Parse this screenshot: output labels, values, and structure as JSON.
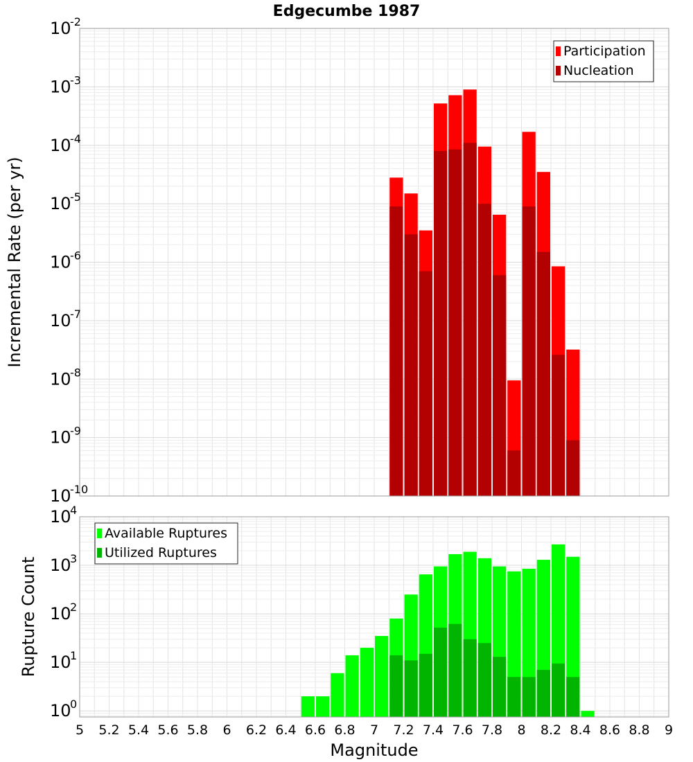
{
  "title": "Edgecumbe 1987",
  "chart_data": [
    {
      "type": "bar",
      "ylabel": "Incremental Rate (per yr)",
      "y_scale": "log",
      "ylim": [
        1e-10,
        0.01
      ],
      "y_ticks": [
        {
          "base": "10",
          "exp": "-10"
        },
        {
          "base": "10",
          "exp": "-9"
        },
        {
          "base": "10",
          "exp": "-8"
        },
        {
          "base": "10",
          "exp": "-7"
        },
        {
          "base": "10",
          "exp": "-6"
        },
        {
          "base": "10",
          "exp": "-5"
        },
        {
          "base": "10",
          "exp": "-4"
        },
        {
          "base": "10",
          "exp": "-3"
        },
        {
          "base": "10",
          "exp": "-2"
        }
      ],
      "xlim": [
        5,
        9
      ],
      "grid": true,
      "legend_position": "top-right",
      "x": [
        7.15,
        7.25,
        7.35,
        7.45,
        7.55,
        7.65,
        7.75,
        7.85,
        7.95,
        8.05,
        8.15,
        8.25,
        8.35
      ],
      "series": [
        {
          "name": "Participation",
          "color": "#ff0000",
          "values": [
            2.8e-05,
            1.5e-05,
            3.5e-06,
            0.00052,
            0.00072,
            0.0009,
            9.5e-05,
            6.5e-06,
            9.5e-09,
            0.00017,
            3.5e-05,
            8.5e-07,
            3.2e-08
          ]
        },
        {
          "name": "Nucleation",
          "color": "#b30000",
          "values": [
            9e-06,
            3e-06,
            7e-07,
            8e-05,
            8.5e-05,
            0.00011,
            1e-05,
            6e-07,
            6e-10,
            9e-06,
            1.5e-06,
            2.6e-08,
            9e-10
          ]
        }
      ]
    },
    {
      "type": "bar",
      "ylabel": "Rupture Count",
      "xlabel": "Magnitude",
      "y_scale": "log",
      "ylim": [
        0.75,
        10000
      ],
      "y_ticks": [
        {
          "base": "10",
          "exp": "0"
        },
        {
          "base": "10",
          "exp": "1"
        },
        {
          "base": "10",
          "exp": "2"
        },
        {
          "base": "10",
          "exp": "3"
        },
        {
          "base": "10",
          "exp": "4"
        }
      ],
      "xlim": [
        5,
        9
      ],
      "x_tick_labels": [
        "5",
        "5.2",
        "5.4",
        "5.6",
        "5.8",
        "6",
        "6.2",
        "6.4",
        "6.6",
        "6.8",
        "7",
        "7.2",
        "7.4",
        "7.6",
        "7.8",
        "8",
        "8.2",
        "8.4",
        "8.6",
        "8.8",
        "9"
      ],
      "grid": true,
      "legend_position": "top-left",
      "x": [
        6.55,
        6.65,
        6.75,
        6.85,
        6.95,
        7.05,
        7.15,
        7.25,
        7.35,
        7.45,
        7.55,
        7.65,
        7.75,
        7.85,
        7.95,
        8.05,
        8.15,
        8.25,
        8.35,
        8.45
      ],
      "series": [
        {
          "name": "Available Ruptures",
          "color": "#00ff00",
          "values": [
            2,
            2,
            6,
            14,
            20,
            35,
            80,
            250,
            650,
            950,
            1700,
            1900,
            1400,
            950,
            750,
            850,
            1300,
            2700,
            1500,
            1
          ]
        },
        {
          "name": "Utilized Ruptures",
          "color": "#00b400",
          "values": [
            null,
            null,
            null,
            null,
            null,
            null,
            14,
            11,
            15,
            52,
            62,
            30,
            25,
            13,
            5,
            5,
            7,
            9.5,
            5,
            null
          ]
        }
      ]
    }
  ]
}
